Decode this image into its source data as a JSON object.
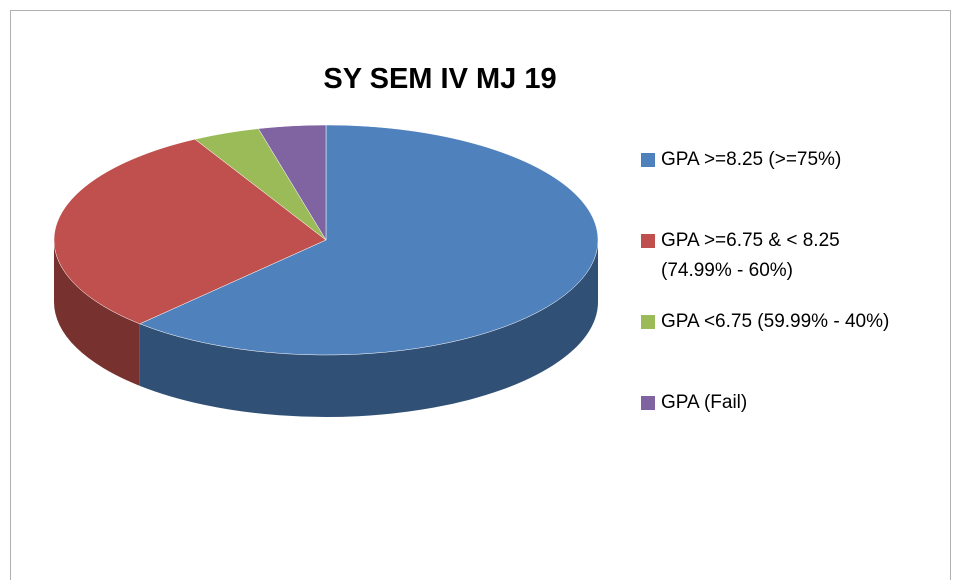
{
  "chart_data": {
    "type": "pie",
    "title": "SY SEM IV MJ 19",
    "categories": [
      "GPA >=8.25 (>=75%)",
      "GPA >=6.75 & < 8.25 (74.99% - 60%)",
      "GPA <6.75 (59.99% - 40%)",
      "GPA (Fail)"
    ],
    "values": [
      62,
      30,
      4,
      4
    ],
    "colors": [
      "#4f81bd",
      "#c0504d",
      "#9bbb59",
      "#8064a2"
    ],
    "legend": "right"
  }
}
